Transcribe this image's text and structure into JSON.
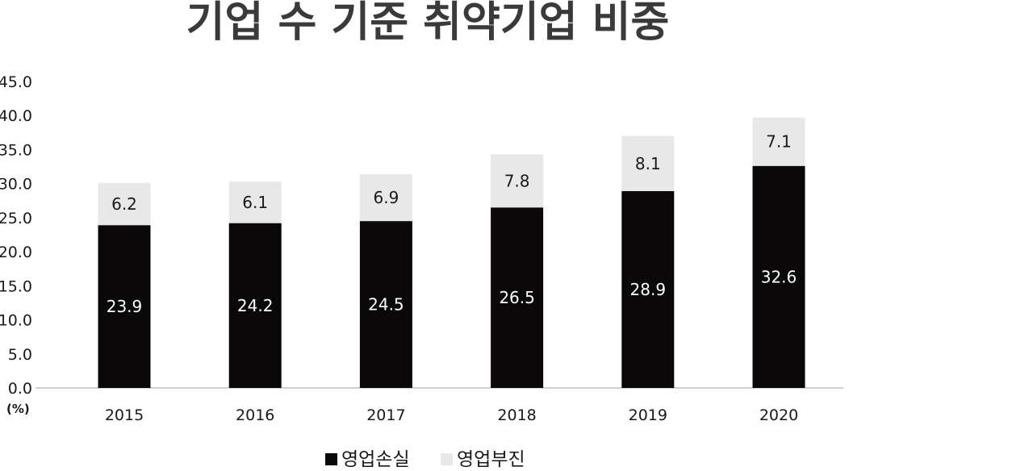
{
  "chart_data": {
    "type": "bar",
    "stacked": true,
    "title": "기업 수 기준 취약기업 비중",
    "unit_label": "(%)",
    "categories": [
      "2015",
      "2016",
      "2017",
      "2018",
      "2019",
      "2020"
    ],
    "series": [
      {
        "name": "영업손실",
        "values": [
          23.9,
          24.2,
          24.5,
          26.5,
          28.9,
          32.6
        ],
        "color": "#0a0808"
      },
      {
        "name": "영업부진",
        "values": [
          6.2,
          6.1,
          6.9,
          7.8,
          8.1,
          7.1
        ],
        "color": "#e8e8e8"
      }
    ],
    "ylim": [
      0,
      45
    ],
    "yticks": [
      "0.0",
      "5.0",
      "10.0",
      "15.0",
      "20.0",
      "25.0",
      "30.0",
      "35.0",
      "40.0",
      "45.0"
    ],
    "grid": false,
    "legend_position": "bottom-center"
  }
}
